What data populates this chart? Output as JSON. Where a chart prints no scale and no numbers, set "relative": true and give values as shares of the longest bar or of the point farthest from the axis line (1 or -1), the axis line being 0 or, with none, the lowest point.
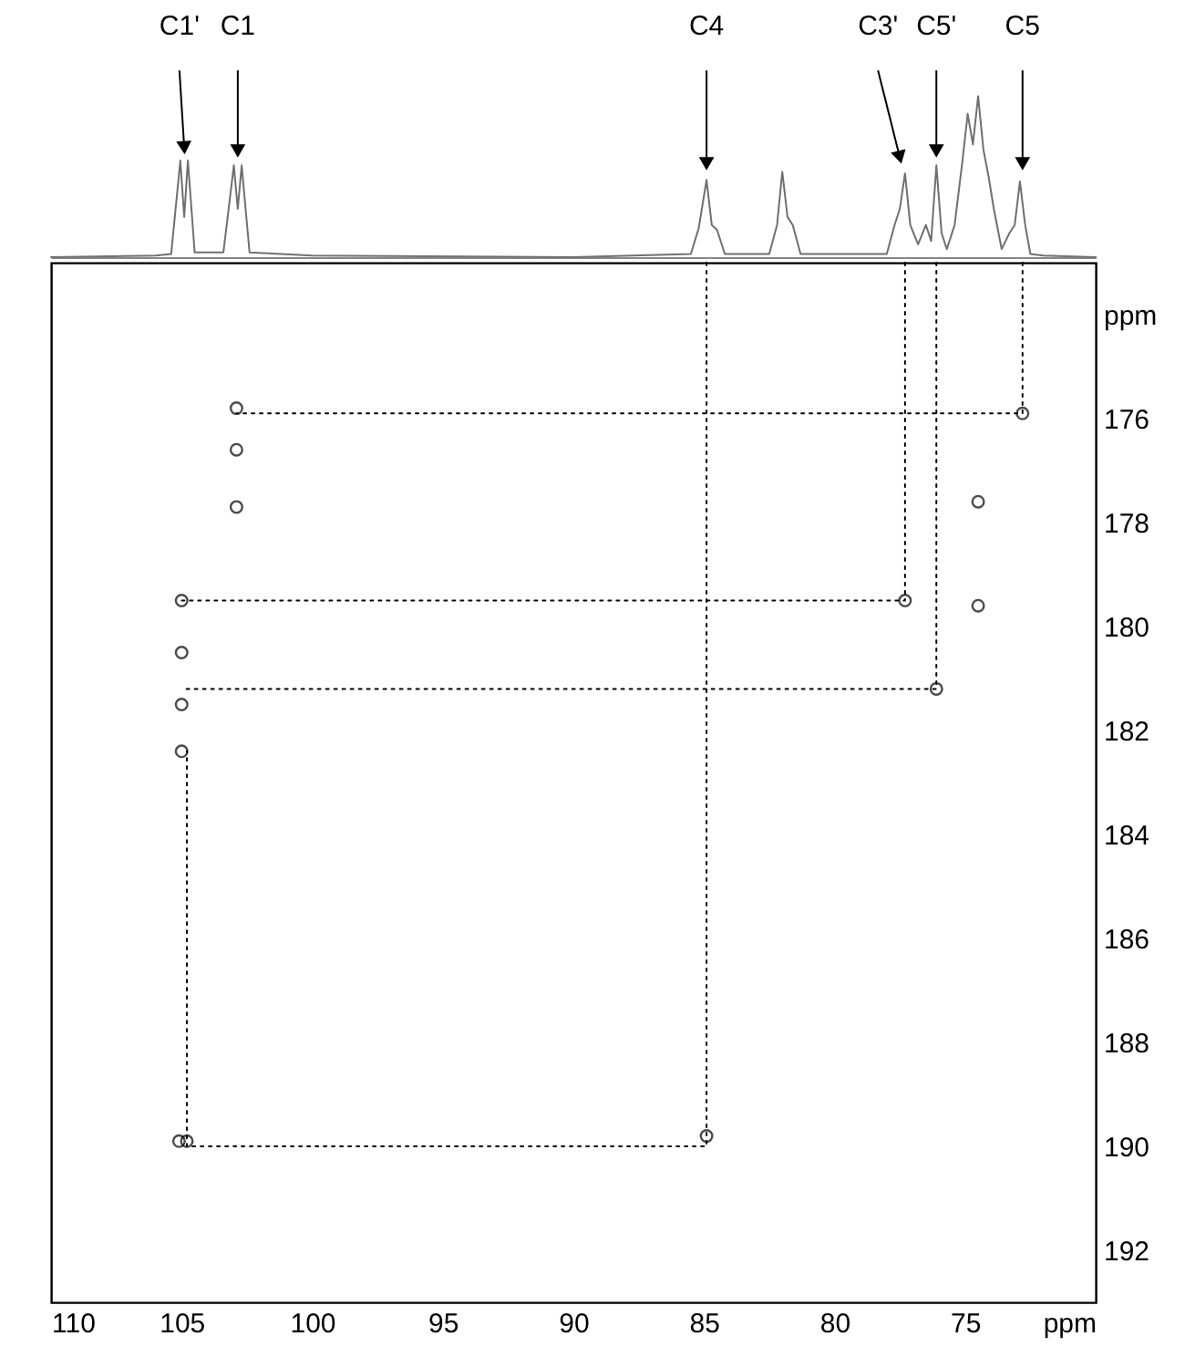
{
  "chart_data": [
    {
      "type": "line",
      "relative": true,
      "xlim": [
        110,
        70
      ],
      "tick_labels": false,
      "grid": false,
      "series": [
        {
          "color": "#707070",
          "x": [
            110,
            106,
            105.4,
            105.05,
            104.9,
            104.76,
            104.5,
            103.4,
            103.0,
            102.85,
            102.7,
            102.4,
            100,
            90,
            85.5,
            85.2,
            84.9,
            84.7,
            84.5,
            84.2,
            82.5,
            82.2,
            82.0,
            81.8,
            81.6,
            81.3,
            78,
            77.7,
            77.5,
            77.3,
            77.1,
            76.8,
            76.5,
            76.3,
            76.1,
            75.9,
            75.7,
            75.4,
            75.1,
            74.9,
            74.7,
            74.5,
            74.3,
            74.1,
            73.9,
            73.6,
            73.3,
            73.1,
            72.9,
            72.7,
            72.5,
            72,
            70
          ],
          "values": [
            0,
            0.01,
            0.02,
            0.6,
            0.25,
            0.6,
            0.03,
            0.03,
            0.57,
            0.3,
            0.57,
            0.03,
            0.01,
            0,
            0.02,
            0.18,
            0.48,
            0.2,
            0.17,
            0.02,
            0.02,
            0.2,
            0.53,
            0.25,
            0.2,
            0.02,
            0.02,
            0.2,
            0.3,
            0.52,
            0.2,
            0.08,
            0.2,
            0.1,
            0.57,
            0.15,
            0.05,
            0.2,
            0.6,
            0.89,
            0.7,
            1.0,
            0.67,
            0.5,
            0.3,
            0.05,
            0.15,
            0.2,
            0.47,
            0.2,
            0.02,
            0.01,
            0
          ]
        }
      ],
      "annotations": [
        {
          "text": "C1'",
          "x": 104.9,
          "y": 0.62
        },
        {
          "text": "C1",
          "x": 102.85,
          "y": 0.6
        },
        {
          "text": "C4",
          "x": 84.9,
          "y": 0.52
        },
        {
          "text": "C3'",
          "x": 77.5,
          "y": 0.56
        },
        {
          "text": "C5'",
          "x": 76.1,
          "y": 0.6
        },
        {
          "text": "C5",
          "x": 72.8,
          "y": 0.52
        }
      ]
    },
    {
      "type": "scatter",
      "marker": "circle",
      "grid": false,
      "xlim": [
        110,
        70
      ],
      "ylim": [
        193,
        173
      ],
      "xticks": [
        110,
        105,
        100,
        95,
        90,
        85,
        80,
        75,
        {
          "value": 70,
          "label": "ppm"
        }
      ],
      "yticks": [
        {
          "value": 174,
          "label": "ppm"
        },
        176,
        178,
        180,
        182,
        184,
        186,
        188,
        190,
        192
      ],
      "series": [
        {
          "color": "#000000",
          "x": [
            102.9,
            102.9,
            102.9,
            105.0,
            105.0,
            105.0,
            105.0,
            105.1,
            104.8,
            84.9,
            77.3,
            76.1,
            72.8,
            74.5,
            74.5
          ],
          "values": [
            175.8,
            176.6,
            177.7,
            179.5,
            180.5,
            181.5,
            182.4,
            189.9,
            189.9,
            189.8,
            179.5,
            181.2,
            175.9,
            177.6,
            179.6
          ]
        },
        {
          "type": "line",
          "marker": "none",
          "line_style": "dotted",
          "color": "#000000",
          "x": [
            72.8,
            72.8,
            102.9
          ],
          "values": [
            173,
            175.9,
            175.9
          ]
        },
        {
          "type": "line",
          "marker": "none",
          "line_style": "dotted",
          "color": "#000000",
          "x": [
            77.3,
            77.3,
            105.0
          ],
          "values": [
            173,
            179.5,
            179.5
          ]
        },
        {
          "type": "line",
          "marker": "none",
          "line_style": "dotted",
          "color": "#000000",
          "x": [
            76.1,
            76.1,
            105.0
          ],
          "values": [
            173,
            181.2,
            181.2
          ]
        },
        {
          "type": "line",
          "marker": "none",
          "line_style": "dotted",
          "color": "#000000",
          "x": [
            84.9,
            84.9,
            104.8,
            104.8
          ],
          "values": [
            173,
            190,
            190,
            182.4
          ]
        }
      ]
    }
  ]
}
